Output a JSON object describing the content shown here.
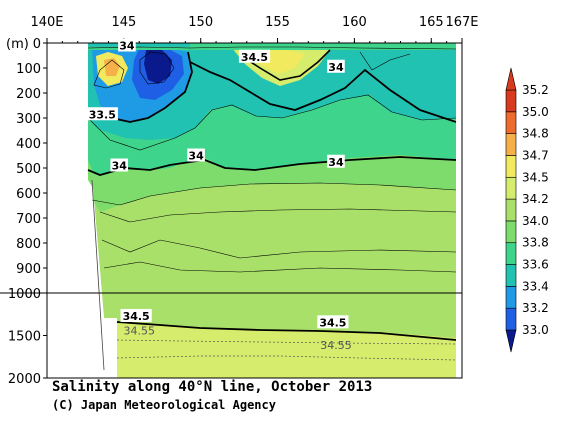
{
  "chart_data": {
    "type": "contour",
    "title": "Salinity along 40°N line, October 2013",
    "credit": "(C) Japan Meteorological Agency",
    "x_axis": {
      "range": [
        140,
        167
      ],
      "ticks": [
        {
          "value": 140,
          "label": "140E"
        },
        {
          "value": 145,
          "label": "145"
        },
        {
          "value": 150,
          "label": "150"
        },
        {
          "value": 155,
          "label": "155"
        },
        {
          "value": 160,
          "label": "160"
        },
        {
          "value": 165,
          "label": "165"
        },
        {
          "value": 167,
          "label": "167E"
        }
      ]
    },
    "y_axis": {
      "unit_label": "(m)",
      "upper_range": [
        0,
        1000
      ],
      "lower_range": [
        1000,
        2000
      ],
      "ticks": [
        {
          "value": 0,
          "label": "0"
        },
        {
          "value": 100,
          "label": "100"
        },
        {
          "value": 200,
          "label": "200"
        },
        {
          "value": 300,
          "label": "300"
        },
        {
          "value": 400,
          "label": "400"
        },
        {
          "value": 500,
          "label": "500"
        },
        {
          "value": 600,
          "label": "600"
        },
        {
          "value": 700,
          "label": "700"
        },
        {
          "value": 800,
          "label": "800"
        },
        {
          "value": 900,
          "label": "900"
        },
        {
          "value": 1000,
          "label": "1000"
        },
        {
          "value": 1500,
          "label": "1500"
        },
        {
          "value": 2000,
          "label": "2000"
        }
      ]
    },
    "colorbar": {
      "levels": [
        "33.0",
        "33.2",
        "33.4",
        "33.6",
        "33.8",
        "34.0",
        "34.2",
        "34.5",
        "34.7",
        "34.8",
        "35.0",
        "35.2"
      ],
      "colors": [
        "#0a1a8c",
        "#1f5fe6",
        "#1f9be6",
        "#22c2b2",
        "#3fd48c",
        "#7ddc6b",
        "#a9e06a",
        "#d6ec6c",
        "#f1ea5f",
        "#f6b04a",
        "#ee6b2e",
        "#d83a20"
      ]
    },
    "contour_labels": [
      {
        "text": "34",
        "lon": 145.2,
        "depth": 10
      },
      {
        "text": "34.5",
        "lon": 153.5,
        "depth": 55
      },
      {
        "text": "34",
        "lon": 158.8,
        "depth": 95
      },
      {
        "text": "33.5",
        "lon": 143.6,
        "depth": 285
      },
      {
        "text": "34",
        "lon": 144.7,
        "depth": 490
      },
      {
        "text": "34",
        "lon": 149.7,
        "depth": 450
      },
      {
        "text": "34",
        "lon": 158.8,
        "depth": 475
      },
      {
        "text": "34.5",
        "lon": 145.8,
        "depth": 1270
      },
      {
        "text": "34.5",
        "lon": 158.6,
        "depth": 1345
      }
    ],
    "secondary_labels": [
      {
        "text": "34.55",
        "lon": 146.0,
        "depth": 1440
      },
      {
        "text": "34.55",
        "lon": 158.8,
        "depth": 1610
      }
    ]
  }
}
